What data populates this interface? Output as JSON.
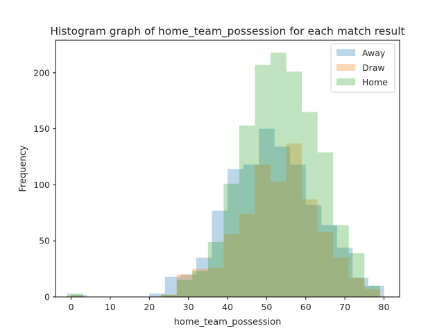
{
  "chart_data": {
    "type": "histogram",
    "title": "Histogram graph of home_team_possession for each match result",
    "xlabel": "home_team_possession",
    "ylabel": "Frequency",
    "xlim": [
      -4,
      84
    ],
    "ylim": [
      0,
      229
    ],
    "xticks": [
      0,
      10,
      20,
      30,
      40,
      50,
      60,
      70,
      80
    ],
    "yticks": [
      0,
      50,
      100,
      150,
      200
    ],
    "legend_position": "top-right",
    "series": [
      {
        "name": "Away",
        "color": "#1f77b4",
        "bin_edges": [
          0,
          4,
          8,
          12,
          16,
          20,
          24,
          28,
          32,
          36,
          40,
          44,
          48,
          52,
          56,
          60,
          64,
          68,
          72,
          76,
          80
        ],
        "counts": [
          2,
          0,
          0,
          0,
          0,
          3,
          18,
          20,
          35,
          77,
          114,
          118,
          150,
          134,
          118,
          82,
          64,
          44,
          17,
          10,
          5
        ]
      },
      {
        "name": "Draw",
        "color": "#ff7f0e",
        "bin_edges": [
          -1,
          3,
          7,
          11,
          15,
          19,
          23,
          27,
          31,
          35,
          39,
          43,
          47,
          51,
          55,
          59,
          63,
          67,
          71,
          75,
          79
        ],
        "counts": [
          1,
          0,
          0,
          0,
          0,
          0,
          2,
          20,
          25,
          26,
          56,
          74,
          118,
          103,
          137,
          87,
          58,
          35,
          17,
          7,
          0
        ]
      },
      {
        "name": "Home",
        "color": "#2ca02c",
        "bin_edges": [
          -1,
          3,
          7,
          11,
          15,
          19,
          23,
          27,
          31,
          35,
          39,
          43,
          47,
          51,
          55,
          59,
          63,
          67,
          71,
          75,
          79
        ],
        "counts": [
          3,
          0,
          0,
          0,
          0,
          0,
          2,
          15,
          23,
          49,
          101,
          153,
          207,
          218,
          201,
          165,
          129,
          64,
          39,
          10,
          0
        ]
      }
    ]
  }
}
